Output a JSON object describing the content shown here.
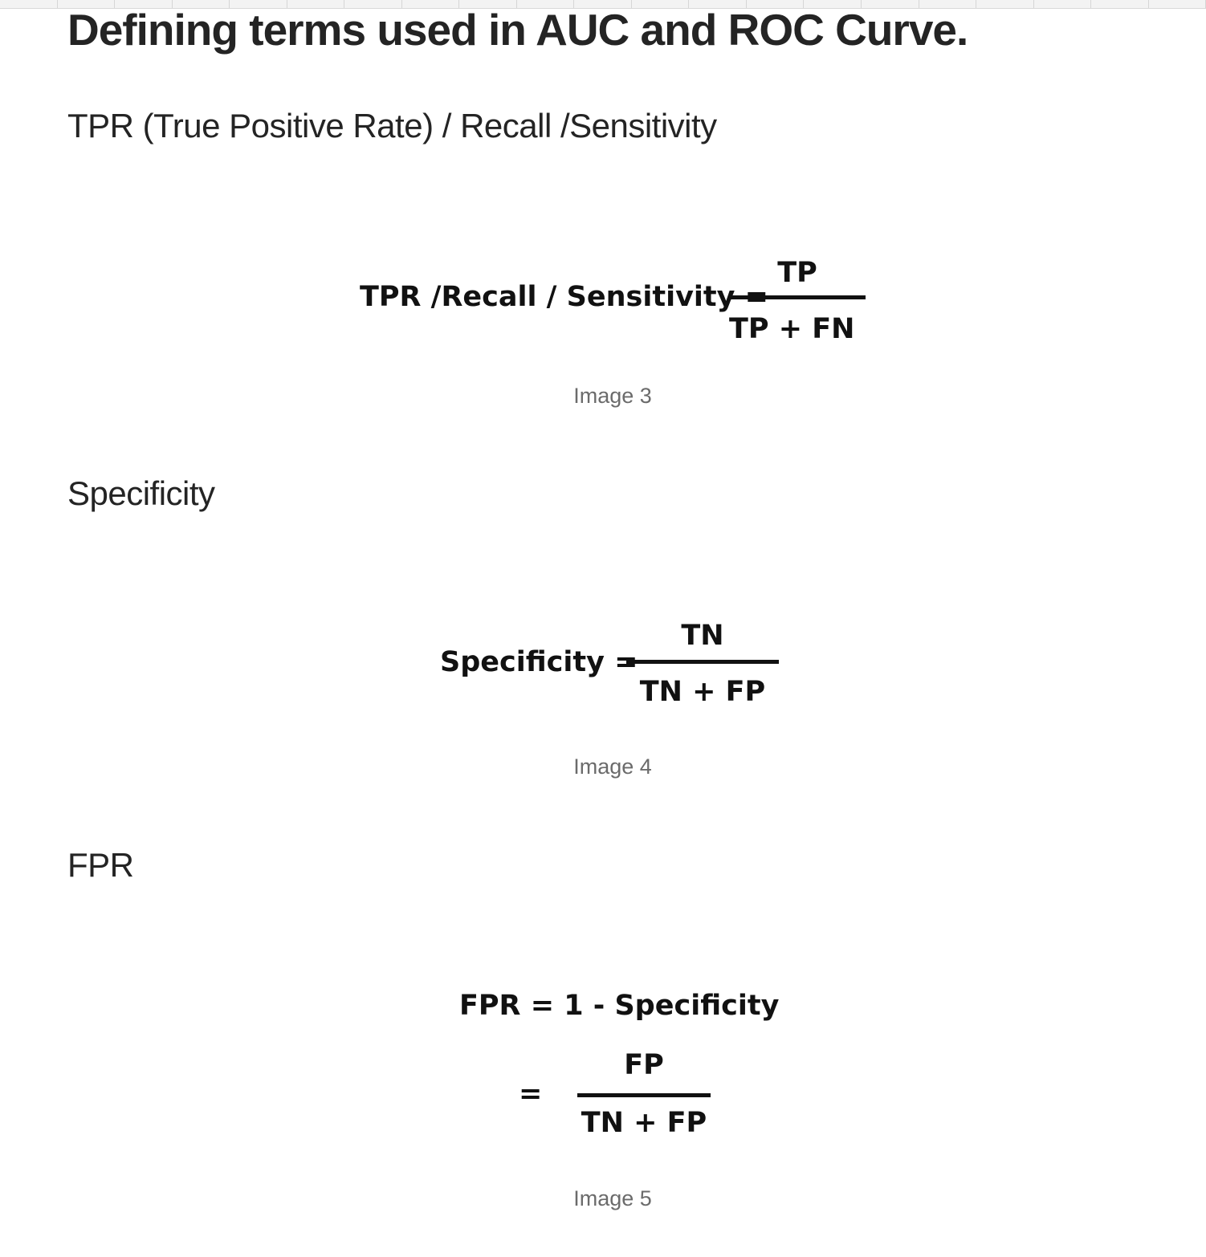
{
  "page_title": "Defining terms used in AUC and ROC Curve.",
  "sections": [
    {
      "heading": "TPR (True Positive Rate) / Recall /Sensitivity",
      "formula": {
        "lhs": "TPR /Recall / Sensitivity =",
        "numerator": "TP",
        "denominator": "TP + FN"
      },
      "caption": "Image 3"
    },
    {
      "heading": "Specificity",
      "formula": {
        "lhs": "Specificity =",
        "numerator": "TN",
        "denominator": "TN + FP"
      },
      "caption": "Image 4"
    },
    {
      "heading": "FPR",
      "formula": {
        "line1": "FPR = 1 - Specificity",
        "lhs": "=",
        "numerator": "FP",
        "denominator": "TN + FP"
      },
      "caption": "Image 5"
    }
  ],
  "colors": {
    "text": "#242424",
    "formula": "#111111",
    "caption": "#6b6b6b"
  }
}
